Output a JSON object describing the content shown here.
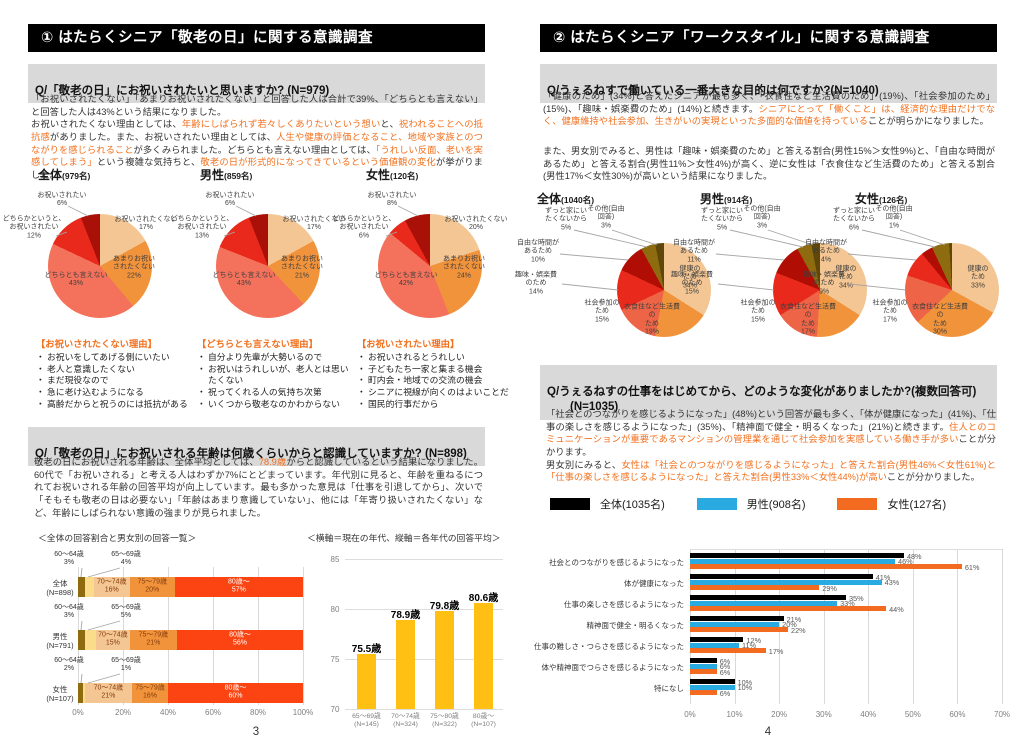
{
  "palette": {
    "accent": "#F2711F",
    "pie_left": [
      "#F4C693",
      "#F1933B",
      "#F4715B",
      "#E9291B",
      "#A81008"
    ],
    "pie_right": [
      "#F4C693",
      "#F1933B",
      "#EE6446",
      "#E9291B",
      "#B00E05",
      "#8F6B0F",
      "#5E4708"
    ],
    "stacked": [
      "#8F6B0F",
      "#FBDC8A",
      "#F4C693",
      "#F1933B",
      "#FB4411"
    ],
    "column": "#FFC013",
    "series3": [
      "#000000",
      "#29ABE2",
      "#F26B21"
    ],
    "grid": "#D9D9D9"
  },
  "pages": {
    "p3": {
      "title": "① はたらくシニア「敬老の日」に関する意識調査",
      "q1": "Q/「敬老の日」にお祝いされたいと思いますか? (N=979)",
      "q1_para": [
        {
          "t": "「お祝いされたくない」「あまりお祝いされたくない」と回答した人は合計で39%、「どちらとも言えない」と回答した人は43%という結果になりました。\nお祝いされたくない理由としては、",
          "hl": false
        },
        {
          "t": "年齢にしばられず若々しくありたいという想い",
          "hl": true
        },
        {
          "t": "と、",
          "hl": false
        },
        {
          "t": "祝われることへの抵抗感",
          "hl": true
        },
        {
          "t": "がありました。また、お祝いされたい理由としては、",
          "hl": false
        },
        {
          "t": "人生や健康の評価となること、地域や家族とのつながりを感じられること",
          "hl": true
        },
        {
          "t": "が多くみられました。どちらとも言えない理由としては、",
          "hl": false
        },
        {
          "t": "「うれしい反面、老いを実感してしまう」",
          "hl": true
        },
        {
          "t": "という複雑な気持ちと、",
          "hl": false
        },
        {
          "t": "敬老の日が形式的になってきているという価値観の変化",
          "hl": true
        },
        {
          "t": "が挙がりました。",
          "hl": false
        }
      ],
      "pie_groups": [
        {
          "name": "全体",
          "n": "(979名)",
          "values": [
            17,
            22,
            43,
            12,
            6
          ],
          "labels": [
            "お祝いされたくない\n17%",
            "あまりお祝い\nされたくない\n22%",
            "どちらとも言えない\n43%",
            "どちらかというと、\nお祝いされたい\n12%",
            "お祝いされたい\n6%"
          ]
        },
        {
          "name": "男性",
          "n": "(859名)",
          "values": [
            17,
            21,
            43,
            13,
            6
          ],
          "labels": [
            "お祝いされたくない\n17%",
            "あまりお祝い\nされたくない\n21%",
            "どちらとも言えない\n43%",
            "どちらかというと、\nお祝いされたい\n13%",
            "お祝いされたい\n6%"
          ]
        },
        {
          "name": "女性",
          "n": "(120名)",
          "values": [
            20,
            24,
            42,
            6,
            8
          ],
          "labels": [
            "お祝いされたくない\n20%",
            "あまりお祝い\nされたくない\n24%",
            "どちらとも言えない\n42%",
            "どちらかというと、\nお祝いされたい\n6%",
            "お祝いされたい\n8%"
          ]
        }
      ],
      "reasons": [
        {
          "header": "【お祝いされたくない理由】",
          "items": [
            "お祝いをしてあげる側にいたい",
            "老人と意識したくない",
            "まだ現役なので",
            "急に老け込むようになる",
            "高齢だからと祝うのには抵抗がある"
          ]
        },
        {
          "header": "【どちらとも言えない理由】",
          "items": [
            "自分より先輩が大勢いるので",
            "お祝いはうれしいが、老人とは思いたくない",
            "祝ってくれる人の気持ち次第",
            "いくつから敬老なのかわからない"
          ]
        },
        {
          "header": "【お祝いされたい理由】",
          "items": [
            "お祝いされるとうれしい",
            "子どもたち一家と集まる機会",
            "町内会・地域での交流の機会",
            "シニアに視線が向くのはよいことだ",
            "国民的行事だから"
          ]
        }
      ],
      "q2": "Q/「敬老の日」にお祝いされる年齢は何歳くらいからと認識していますか? (N=898)",
      "q2_para": [
        {
          "t": "敬老の日にお祝いされる年齢は、全体平均としては、",
          "hl": false
        },
        {
          "t": "78.9歳",
          "hl": true
        },
        {
          "t": "からと認識しているという結果になりました。60代で「お祝いされる」と考える人はわずか7%にとどまっています。年代別に見ると、年齢を重ねるにつれてお祝いされる年齢の回答平均が向上しています。最も多かった意見は「仕事を引退してから」、次いで「そもそも敬老の日は必要ない」「年齢はあまり意識していない」、他には「年寄り扱いされたくない」など、年齢にしばられない意識の強まりが見られました。",
          "hl": false
        }
      ],
      "cap_left": "＜全体の回答割合と男女別の回答一覧＞",
      "cap_right": "＜横軸＝現在の年代、縦軸＝各年代の回答平均＞",
      "pageno": "3"
    },
    "p4": {
      "title": "② はたらくシニア「ワークスタイル」に関する意識調査",
      "q1": "Q/うぇるねすで働いている一番大きな目的は何ですか?(N=1040)",
      "q1_para1": [
        {
          "t": "「健康のため」(34%)と答えたシニアが最も多く、「衣食住など生活費のため」(19%)、「社会参加のため」(15%)、「趣味・娯楽費のため」(14%)と続きます。",
          "hl": false
        },
        {
          "t": "シニアにとって「働くこと」は、経済的な理由だけでなく、健康維持や社会参加、生きがいの実現といった多面的な価値を持っている",
          "hl": true
        },
        {
          "t": "ことが明らかになりました。",
          "hl": false
        }
      ],
      "q1_para2": [
        {
          "t": "また、男女別でみると、男性は「趣味・娯楽費のため」と答える割合(男性15%＞女性9%)と、「自由な時間があるため」と答える割合(男性11%＞女性4%)が高く、逆に女性は「衣食住など生活費のため」と答える割合(男性17%＜女性30%)が高いという結果になりました。",
          "hl": false
        }
      ],
      "pie_groups": [
        {
          "name": "全体",
          "n": "(1040名)",
          "values": [
            34,
            19,
            15,
            14,
            10,
            5,
            3
          ],
          "labels": [
            "健康のため\n34%",
            "衣食住など生活費の\nため\n19%",
            "社会参加の\nため\n15%",
            "趣味・娯楽費\nのため\n14%",
            "自由な時間が\nあるため\n10%",
            "ずっと家にい\nたくないから\n5%",
            "その他(自由\n回答)\n3%"
          ]
        },
        {
          "name": "男性",
          "n": "(914名)",
          "values": [
            34,
            17,
            15,
            15,
            11,
            5,
            3
          ],
          "labels": [
            "健康のため\n34%",
            "衣食住など生活費の\nため\n17%",
            "社会参加の\nため\n15%",
            "趣味・娯楽費\nのため\n15%",
            "自由な時間が\nあるため\n11%",
            "ずっと家にい\nたくないから\n5%",
            "その他(自由\n回答)\n3%"
          ]
        },
        {
          "name": "女性",
          "n": "(126名)",
          "values": [
            33,
            30,
            17,
            9,
            4,
            6,
            1
          ],
          "labels": [
            "健康のため\n33%",
            "衣食住など生活費の\nため\n30%",
            "社会参加の\nため\n17%",
            "趣味・娯楽費\nのため\n9%",
            "自由な時間が\nあるため\n4%",
            "ずっと家にい\nたくないから\n6%",
            "その他(自由\n回答)\n1%"
          ]
        }
      ],
      "q2": "Q/うぇるねすの仕事をはじめてから、どのような変化がありましたか?(複数回答可)\n　　(N=1035)",
      "q2_para": [
        {
          "t": "「社会とのつながりを感じるようになった」(48%)という回答が最も多く、「体が健康になった」(41%)、「仕事の楽しさを感じるようになった」(35%)、「精神面で健全・明るくなった」(21%)と続きます。",
          "hl": false
        },
        {
          "t": "住人とのコミュニケーションが重要であるマンションの管理業を通じて社会参加を実感している働き手が多い",
          "hl": true
        },
        {
          "t": "ことが分かります。\n男女別にみると、",
          "hl": false
        },
        {
          "t": "女性は「社会とのつながりを感じるようになった」と答えた割合(男性46%＜女性61%)と「仕事の楽しさを感じるようになった」と答えた割合(男性33%＜女性44%)が高い",
          "hl": true
        },
        {
          "t": "ことが分かりました。",
          "hl": false
        }
      ],
      "legend": [
        {
          "label": "全体(1035名)",
          "color": "#000000"
        },
        {
          "label": "男性(908名)",
          "color": "#29ABE2"
        },
        {
          "label": "女性(127名)",
          "color": "#F26B21"
        }
      ],
      "pageno": "4"
    }
  },
  "chart_data": [
    {
      "id": "p3_pie",
      "type": "pie",
      "title": "「敬老の日」にお祝いされたいと思いますか",
      "categories": [
        "お祝いされたくない",
        "あまりお祝いされたくない",
        "どちらとも言えない",
        "どちらかというと、お祝いされたい",
        "お祝いされたい"
      ],
      "series": [
        {
          "name": "全体(979名)",
          "values": [
            17,
            22,
            43,
            12,
            6
          ]
        },
        {
          "name": "男性(859名)",
          "values": [
            17,
            21,
            43,
            13,
            6
          ]
        },
        {
          "name": "女性(120名)",
          "values": [
            20,
            24,
            42,
            6,
            8
          ]
        }
      ],
      "unit": "%"
    },
    {
      "id": "p3_stacked",
      "type": "bar",
      "orientation": "horizontal-stacked",
      "title": "全体の回答割合と男女別の回答一覧",
      "segments": [
        "60～64歳",
        "65～69歳",
        "70～74歳",
        "75～79歳",
        "80歳～"
      ],
      "categories": [
        "全体\n(N=898)",
        "男性\n(N=791)",
        "女性\n(N=107)"
      ],
      "series": [
        {
          "name": "全体(N=898)",
          "values": [
            3,
            4,
            16,
            20,
            57
          ]
        },
        {
          "name": "男性(N=791)",
          "values": [
            3,
            5,
            15,
            21,
            56
          ]
        },
        {
          "name": "女性(N=107)",
          "values": [
            2,
            1,
            21,
            16,
            60
          ]
        }
      ],
      "xlim": [
        0,
        100
      ],
      "xticks": [
        "0%",
        "20%",
        "40%",
        "60%",
        "80%",
        "100%"
      ]
    },
    {
      "id": "p3_avg",
      "type": "bar",
      "title": "横軸=現在の年代、縦軸=各年代の回答平均",
      "categories": [
        "65～69歳\n(N=145)",
        "70～74歳\n(N=324)",
        "75～80歳\n(N=322)",
        "80歳～\n(N=107)"
      ],
      "values": [
        75.5,
        78.9,
        79.8,
        80.6
      ],
      "value_labels": [
        "75.5歳",
        "78.9歳",
        "79.8歳",
        "80.6歳"
      ],
      "ylim": [
        70,
        85
      ],
      "yticks": [
        "70",
        "75",
        "80",
        "85"
      ]
    },
    {
      "id": "p4_pie",
      "type": "pie",
      "title": "うぇるねすで働いている一番大きな目的",
      "categories": [
        "健康のため",
        "衣食住など生活費のため",
        "社会参加のため",
        "趣味・娯楽費のため",
        "自由な時間があるため",
        "ずっと家にいたくないから",
        "その他(自由回答)"
      ],
      "series": [
        {
          "name": "全体(1040名)",
          "values": [
            34,
            19,
            15,
            14,
            10,
            5,
            3
          ]
        },
        {
          "name": "男性(914名)",
          "values": [
            34,
            17,
            15,
            15,
            11,
            5,
            3
          ]
        },
        {
          "name": "女性(126名)",
          "values": [
            33,
            30,
            17,
            9,
            4,
            6,
            1
          ]
        }
      ],
      "unit": "%"
    },
    {
      "id": "p4_hbar",
      "type": "bar",
      "orientation": "horizontal-grouped",
      "title": "うぇるねすの仕事をはじめてからの変化(複数回答可)",
      "categories": [
        "社会とのつながりを感じるようになった",
        "体が健康になった",
        "仕事の楽しさを感じるようになった",
        "精神面で健全・明るくなった",
        "仕事の難しさ・つらさを感じるようになった",
        "体や精神面でつらさを感じるようになった",
        "特になし"
      ],
      "series": [
        {
          "name": "全体(1035名)",
          "values": [
            48,
            41,
            35,
            21,
            12,
            6,
            10
          ]
        },
        {
          "name": "男性(908名)",
          "values": [
            46,
            43,
            33,
            20,
            11,
            6,
            10
          ]
        },
        {
          "name": "女性(127名)",
          "values": [
            61,
            29,
            44,
            22,
            17,
            6,
            6
          ]
        }
      ],
      "xlim": [
        0,
        70
      ],
      "xticks": [
        "0%",
        "10%",
        "20%",
        "30%",
        "40%",
        "50%",
        "60%",
        "70%"
      ]
    }
  ]
}
